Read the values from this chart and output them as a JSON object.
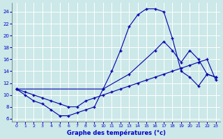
{
  "bg_color": "#cce8e8",
  "line_color": "#0000aa",
  "grid_color": "#ffffff",
  "xlabel": "Graphe des températures (°c)",
  "xlabel_color": "#0000cc",
  "ylabel_color": "#0000cc",
  "yticks": [
    6,
    8,
    10,
    12,
    14,
    16,
    18,
    20,
    22,
    24
  ],
  "xticks": [
    0,
    1,
    2,
    3,
    4,
    5,
    6,
    7,
    8,
    9,
    10,
    11,
    12,
    13,
    14,
    15,
    16,
    17,
    18,
    19,
    20,
    21,
    22,
    23
  ],
  "xlim": [
    -0.5,
    23.5
  ],
  "ylim": [
    5.5,
    25.5
  ],
  "series1_x": [
    0,
    1,
    2,
    3,
    4,
    5,
    6,
    7,
    8,
    9,
    10,
    11,
    12,
    13,
    14,
    15,
    16,
    17,
    18,
    19,
    20,
    21,
    22,
    23
  ],
  "series1_y": [
    11,
    10,
    9,
    8.5,
    7.5,
    6.5,
    6.5,
    7,
    7.5,
    8,
    11,
    14,
    17.5,
    21.5,
    23.5,
    24.5,
    24.5,
    24,
    19.5,
    14,
    13,
    11.5,
    13.5,
    13
  ],
  "series2_x": [
    0,
    1,
    2,
    3,
    4,
    5,
    6,
    7,
    8,
    9,
    10,
    11,
    12,
    13,
    14,
    15,
    16,
    17,
    18,
    19,
    20,
    21,
    22,
    23
  ],
  "series2_y": [
    11,
    10.5,
    10,
    9.5,
    9,
    8.5,
    8,
    8,
    9,
    9.5,
    10,
    10.5,
    11,
    11.5,
    12,
    12.5,
    13,
    13.5,
    14,
    14.5,
    15,
    15.5,
    16,
    12.5
  ],
  "series3_x": [
    0,
    10,
    13,
    16,
    17,
    18,
    19,
    20,
    21,
    22,
    23
  ],
  "series3_y": [
    11,
    11,
    13.5,
    17.5,
    19,
    17.5,
    15.5,
    17.5,
    16,
    13.5,
    13
  ]
}
